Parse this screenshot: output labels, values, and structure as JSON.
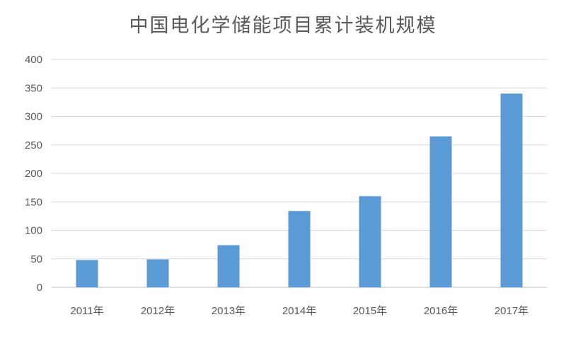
{
  "chart_data": {
    "type": "bar",
    "title": "中国电化学储能项目累计装机规模",
    "categories": [
      "2011年",
      "2012年",
      "2013年",
      "2014年",
      "2015年",
      "2016年",
      "2017年"
    ],
    "values": [
      48,
      49,
      74,
      134,
      160,
      265,
      340
    ],
    "ylim": [
      0,
      400
    ],
    "yticks": [
      0,
      50,
      100,
      150,
      200,
      250,
      300,
      350,
      400
    ],
    "xlabel": "",
    "ylabel": "",
    "grid": true,
    "legend": "none",
    "colors": {
      "bar": "#5b9bd5",
      "grid": "#d9d9d9",
      "axis": "#bfbfbf",
      "text": "#595959"
    }
  }
}
